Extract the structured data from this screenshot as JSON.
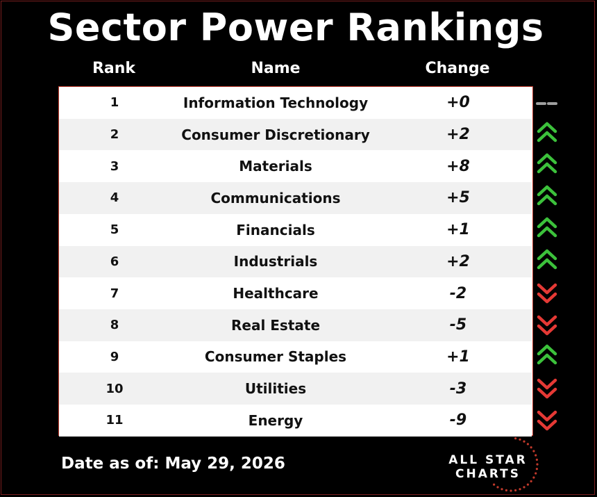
{
  "title": "Sector Power Rankings",
  "columns": {
    "rank": "Rank",
    "name": "Name",
    "change": "Change"
  },
  "chart_data": {
    "type": "table",
    "title": "Sector Power Rankings",
    "columns": [
      "Rank",
      "Name",
      "Change"
    ],
    "rows": [
      {
        "rank": "1",
        "name": "Information Technology",
        "change": "+0",
        "direction": "flat"
      },
      {
        "rank": "2",
        "name": "Consumer Discretionary",
        "change": "+2",
        "direction": "up"
      },
      {
        "rank": "3",
        "name": "Materials",
        "change": "+8",
        "direction": "up"
      },
      {
        "rank": "4",
        "name": "Communications",
        "change": "+5",
        "direction": "up"
      },
      {
        "rank": "5",
        "name": "Financials",
        "change": "+1",
        "direction": "up"
      },
      {
        "rank": "6",
        "name": "Industrials",
        "change": "+2",
        "direction": "up"
      },
      {
        "rank": "7",
        "name": "Healthcare",
        "change": "-2",
        "direction": "down"
      },
      {
        "rank": "8",
        "name": "Real Estate",
        "change": "-5",
        "direction": "down"
      },
      {
        "rank": "9",
        "name": "Consumer Staples",
        "change": "+1",
        "direction": "up"
      },
      {
        "rank": "10",
        "name": "Utilities",
        "change": "-3",
        "direction": "down"
      },
      {
        "rank": "11",
        "name": "Energy",
        "change": "-9",
        "direction": "down"
      }
    ]
  },
  "footer": {
    "date_text": "Date as of: May 29, 2026"
  },
  "logo": {
    "line1": "ALL STAR",
    "line2": "CHARTS"
  },
  "colors": {
    "up": "#3cc13b",
    "down": "#e53935",
    "flat": "#9e9e9e",
    "accent": "#c0392b"
  }
}
